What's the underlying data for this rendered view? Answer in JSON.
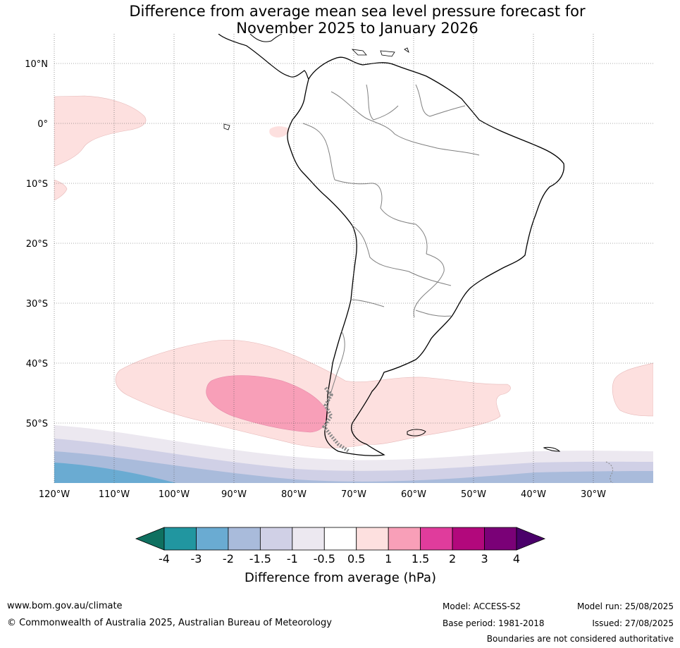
{
  "title_line1": "Difference from average mean sea level pressure forecast for",
  "title_line2": "November 2025 to January 2026",
  "map": {
    "lat_labels": [
      "10°N",
      "0°",
      "10°S",
      "20°S",
      "30°S",
      "40°S",
      "50°S"
    ],
    "lon_labels": [
      "120°W",
      "110°W",
      "100°W",
      "90°W",
      "80°W",
      "70°W",
      "60°W",
      "50°W",
      "40°W",
      "30°W"
    ]
  },
  "colorbar": {
    "title": "Difference from average (hPa)",
    "tick_labels": [
      "-4",
      "-3",
      "-2",
      "-1.5",
      "-1",
      "-0.5",
      "0.5",
      "1",
      "1.5",
      "2",
      "3",
      "4"
    ],
    "colors": [
      "#0f7060",
      "#2196a0",
      "#6aabd2",
      "#a9bbdb",
      "#d0d0e6",
      "#ece8f0",
      "#ffffff",
      "#fde0df",
      "#f89fb8",
      "#e03c9c",
      "#b2087c",
      "#7a0177",
      "#4a006a"
    ]
  },
  "footer": {
    "website": "www.bom.gov.au/climate",
    "copyright": "© Commonwealth of Australia 2025, Australian Bureau of Meteorology",
    "model": "Model: ACCESS-S2",
    "base_period": "Base period: 1981-2018",
    "model_run": "Model run: 25/08/2025",
    "issued": "Issued: 27/08/2025",
    "disclaimer": "Boundaries are not considered authoritative"
  }
}
